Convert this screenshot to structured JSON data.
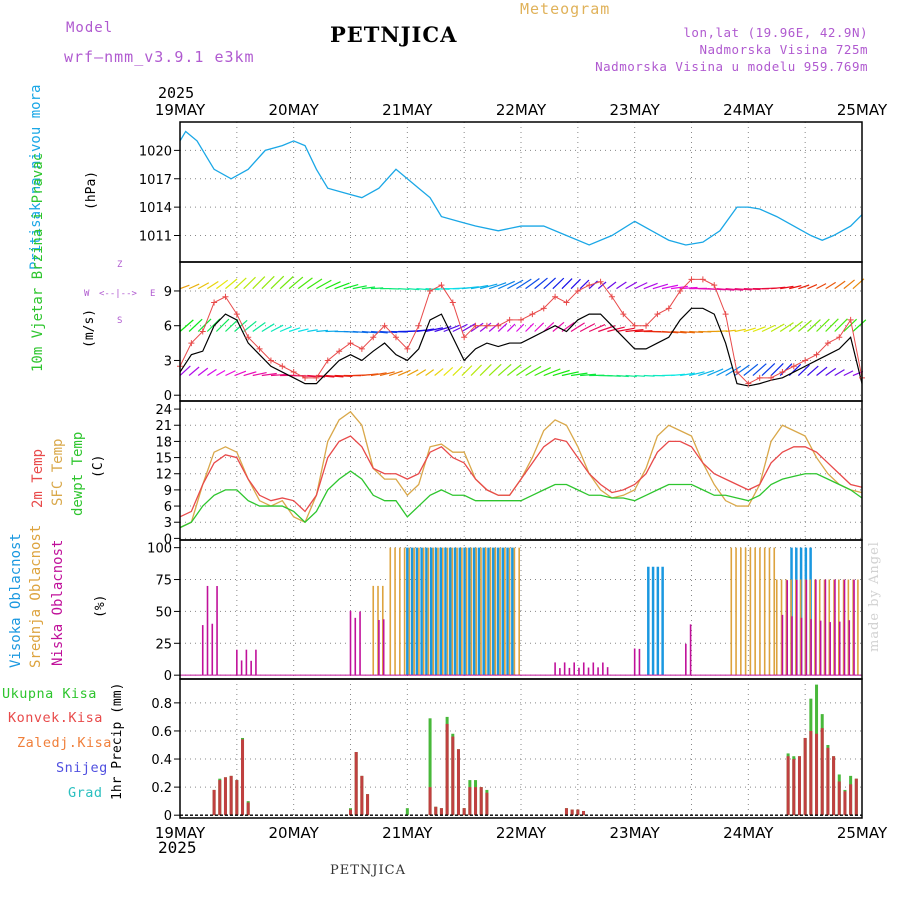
{
  "header": {
    "model_label": "Model",
    "model_name": "wrf—nmm_v3.9.1  e3km",
    "title": "PETNJICA",
    "meteogram_label": "Meteogram",
    "lonlat": "lon,lat (19.96E, 42.9N)",
    "altitude": "Nadmorska Visina 725m",
    "altitude_model": "Nadmorska Visina u modelu 959.769m",
    "year_top": "2025",
    "year_bottom": "2025"
  },
  "footer": {
    "station": "PETNJICA",
    "watermark": "made by Angel"
  },
  "colors": {
    "pressure": "#1aa7e6",
    "temp2m": "#e84a4a",
    "sfc": "#d9a84a",
    "dewpt": "#2ec52e",
    "high_cloud": "#1a98e0",
    "mid_cloud": "#dda33e",
    "low_cloud": "#c0109a",
    "precip_total": "#48b83a",
    "precip_conv": "#c04040",
    "text_purple": "#b05ad0"
  },
  "chart_data": [
    {
      "id": "pressure",
      "type": "line",
      "ylabel_title": "Pritisak na nivou mora",
      "ylabel_unit": "(hPa)",
      "yticks": [
        1011,
        1014,
        1017,
        1020
      ],
      "ylim": [
        1008.2,
        1023
      ],
      "x_days": [
        0,
        0.05,
        0.15,
        0.3,
        0.45,
        0.6,
        0.75,
        0.9,
        1.0,
        1.1,
        1.2,
        1.3,
        1.45,
        1.6,
        1.75,
        1.9,
        2.0,
        2.1,
        2.2,
        2.3,
        2.45,
        2.6,
        2.8,
        3.0,
        3.2,
        3.4,
        3.6,
        3.8,
        4.0,
        4.15,
        4.3,
        4.45,
        4.6,
        4.75,
        4.9,
        5.0,
        5.1,
        5.25,
        5.4,
        5.55,
        5.65,
        5.75,
        5.9,
        6.0
      ],
      "values": [
        1021,
        1022,
        1021,
        1018,
        1017,
        1018,
        1020,
        1020.5,
        1021,
        1020.5,
        1018,
        1016,
        1015.5,
        1015,
        1016,
        1018,
        1017,
        1016,
        1015,
        1013,
        1012.5,
        1012,
        1011.5,
        1012,
        1012,
        1011,
        1010,
        1011,
        1012.5,
        1011.5,
        1010.5,
        1010,
        1010.3,
        1011.5,
        1014,
        1014,
        1013.8,
        1013,
        1012,
        1011,
        1010.5,
        1011,
        1012,
        1013.2
      ]
    },
    {
      "id": "wind",
      "type": "line",
      "ylabel_title": "10m Vjetar Brzina i Pravac",
      "ylabel_unit": "(m/s)",
      "compass": [
        "Z",
        "W",
        "E",
        "S",
        "<--|-->"
      ],
      "yticks": [
        0,
        3,
        6,
        9
      ],
      "ylim": [
        -0.5,
        11.5
      ],
      "x_days": [
        0,
        0.1,
        0.2,
        0.3,
        0.4,
        0.5,
        0.6,
        0.7,
        0.8,
        0.9,
        1.0,
        1.1,
        1.2,
        1.3,
        1.4,
        1.5,
        1.6,
        1.7,
        1.8,
        1.9,
        2.0,
        2.1,
        2.2,
        2.3,
        2.4,
        2.5,
        2.6,
        2.7,
        2.8,
        2.9,
        3.0,
        3.1,
        3.2,
        3.3,
        3.4,
        3.5,
        3.6,
        3.7,
        3.8,
        3.9,
        4.0,
        4.1,
        4.2,
        4.3,
        4.4,
        4.5,
        4.6,
        4.7,
        4.8,
        4.9,
        5.0,
        5.1,
        5.2,
        5.3,
        5.4,
        5.5,
        5.6,
        5.7,
        5.8,
        5.9,
        6.0
      ],
      "speed": [
        2,
        3.5,
        3.8,
        6,
        7,
        6.5,
        4.5,
        3.5,
        2.5,
        2,
        1.5,
        1,
        1,
        2,
        3,
        3.5,
        3,
        3.8,
        4.5,
        3.5,
        3,
        4,
        6.5,
        7,
        5,
        3,
        4,
        4.5,
        4.2,
        4.5,
        4.5,
        5,
        5.5,
        6,
        5.5,
        6.5,
        7,
        7,
        6,
        5,
        4,
        4,
        4.5,
        5,
        6.5,
        7.5,
        7.5,
        7,
        4.5,
        1,
        0.8,
        1,
        1.3,
        1.5,
        2,
        2.5,
        3,
        3.5,
        4,
        5,
        1
      ],
      "gust": [
        2.5,
        4.5,
        5.5,
        8,
        8.5,
        7,
        5,
        4,
        3,
        2.5,
        2,
        1.5,
        1.5,
        3,
        3.8,
        4.5,
        4,
        5,
        6,
        5,
        4,
        6,
        9,
        9.5,
        8,
        5,
        6,
        6,
        6,
        6.5,
        6.5,
        7,
        7.5,
        8.5,
        8,
        9,
        9.5,
        9.8,
        8.5,
        7,
        6,
        6,
        7,
        7.5,
        9,
        10,
        10,
        9.5,
        7,
        2,
        1,
        1.5,
        1.5,
        2,
        2.5,
        3,
        3.5,
        4.5,
        5,
        6.5,
        1.5
      ]
    },
    {
      "id": "temperature",
      "type": "line",
      "ylabel_title": [
        "2m Temp",
        "SFC Temp",
        "dewpt Temp"
      ],
      "ylabel_unit": "(C)",
      "yticks": [
        0,
        3,
        6,
        9,
        12,
        15,
        18,
        21,
        24
      ],
      "ylim": [
        -0.3,
        25.5
      ],
      "x_days": [
        0,
        0.1,
        0.2,
        0.3,
        0.4,
        0.5,
        0.6,
        0.7,
        0.8,
        0.9,
        1.0,
        1.1,
        1.2,
        1.3,
        1.4,
        1.5,
        1.6,
        1.7,
        1.8,
        1.9,
        2.0,
        2.1,
        2.2,
        2.3,
        2.4,
        2.5,
        2.6,
        2.7,
        2.8,
        2.9,
        3.0,
        3.1,
        3.2,
        3.3,
        3.4,
        3.5,
        3.6,
        3.7,
        3.8,
        3.9,
        4.0,
        4.1,
        4.2,
        4.3,
        4.4,
        4.5,
        4.6,
        4.7,
        4.8,
        4.9,
        5.0,
        5.1,
        5.2,
        5.3,
        5.4,
        5.5,
        5.6,
        5.7,
        5.8,
        5.9,
        6.0
      ],
      "temp2m": [
        4,
        5,
        10,
        14,
        15.5,
        15,
        11,
        8,
        7,
        7.5,
        7,
        5,
        8,
        15,
        18,
        19,
        17,
        13,
        12,
        12,
        11,
        12,
        16,
        17,
        15,
        14,
        11,
        9,
        8,
        8,
        11,
        14,
        17,
        18.5,
        18,
        15,
        12,
        10,
        8.5,
        9,
        10,
        12,
        16,
        18,
        18,
        17,
        14,
        12,
        11,
        10,
        9,
        10,
        14,
        16,
        17,
        17,
        16,
        14,
        12,
        10,
        9.5
      ],
      "sfc": [
        2,
        3,
        10,
        16,
        17,
        16,
        11,
        7,
        6,
        7,
        4,
        3,
        8,
        18,
        22,
        23.5,
        21,
        13,
        11,
        11,
        8,
        10,
        17,
        17.5,
        16,
        16,
        11,
        9,
        8,
        8,
        11,
        15,
        20,
        22,
        21,
        17,
        12,
        9,
        7.5,
        8,
        9,
        13,
        19,
        21,
        20,
        19,
        14,
        10,
        7,
        6,
        6,
        10,
        18,
        21,
        20,
        19,
        15,
        12,
        10,
        9,
        8.5
      ],
      "dewpt": [
        2,
        3,
        6,
        8,
        9,
        9,
        7,
        6,
        6,
        6,
        5,
        3,
        5,
        9,
        11,
        12.5,
        11,
        8,
        7,
        7,
        4,
        6,
        8,
        9,
        8,
        8,
        7,
        7,
        7,
        7,
        7,
        8,
        9,
        10,
        10,
        9,
        8,
        8,
        7.5,
        7.5,
        7,
        8,
        9,
        10,
        10,
        10,
        9,
        8,
        8,
        7.5,
        7,
        8,
        10,
        11,
        11.5,
        12,
        12,
        11,
        10,
        9,
        7.5
      ]
    },
    {
      "id": "clouds",
      "type": "bar",
      "ylabel_title": [
        "Visoka Oblacnost",
        "Srednja Oblacnost",
        "Niska Oblacnost"
      ],
      "ylabel_unit": "(%)",
      "yticks": [
        0,
        25,
        50,
        75,
        100
      ],
      "ylim": [
        -3,
        106
      ],
      "series": [
        {
          "name": "Visoka Oblacnost",
          "spans": [
            [
              2.0,
              2.95,
              100
            ],
            [
              4.12,
              4.28,
              85
            ],
            [
              5.38,
              5.55,
              100
            ]
          ]
        },
        {
          "name": "Srednja Oblacnost",
          "spans": [
            [
              1.7,
              1.8,
              70
            ],
            [
              1.85,
              3.0,
              100
            ],
            [
              4.85,
              5.25,
              100
            ],
            [
              5.25,
              6.0,
              75
            ]
          ]
        },
        {
          "name": "Niska Oblacnost",
          "spans": [
            [
              0.2,
              0.35,
              70
            ],
            [
              0.5,
              0.7,
              20
            ],
            [
              1.5,
              1.6,
              55
            ],
            [
              1.75,
              1.8,
              50
            ],
            [
              3.3,
              3.8,
              10
            ],
            [
              4.0,
              4.05,
              24
            ],
            [
              4.45,
              4.5,
              40
            ],
            [
              5.3,
              5.95,
              75
            ]
          ]
        }
      ]
    },
    {
      "id": "precip",
      "type": "bar",
      "ylabel_title": [
        "Ukupna Kisa",
        "Konvek.Kisa",
        "Zaledj.Kisa",
        "Snijeg",
        "Grad"
      ],
      "ylabel_unit": "1hr Precip (mm)",
      "yticks": [
        0,
        0.2,
        0.4,
        0.6,
        0.8
      ],
      "ylim": [
        -0.02,
        0.97
      ],
      "x_days": [
        0.3,
        0.35,
        0.4,
        0.45,
        0.5,
        0.55,
        0.6,
        1.5,
        1.55,
        1.6,
        1.65,
        2.0,
        2.2,
        2.25,
        2.3,
        2.35,
        2.4,
        2.45,
        2.5,
        2.55,
        2.6,
        2.65,
        2.7,
        3.4,
        3.45,
        3.5,
        3.55,
        5.35,
        5.4,
        5.45,
        5.5,
        5.55,
        5.6,
        5.65,
        5.7,
        5.75,
        5.8,
        5.85,
        5.9,
        5.95
      ],
      "total": [
        0.18,
        0.26,
        0.27,
        0.28,
        0.25,
        0.55,
        0.1,
        0.05,
        0.45,
        0.28,
        0.15,
        0.05,
        0.69,
        0.06,
        0.05,
        0.7,
        0.58,
        0.47,
        0.05,
        0.25,
        0.25,
        0.2,
        0.18,
        0.05,
        0.04,
        0.04,
        0.03,
        0.44,
        0.42,
        0.42,
        0.55,
        0.83,
        0.93,
        0.72,
        0.5,
        0.42,
        0.29,
        0.18,
        0.28,
        0.26
      ],
      "conv": [
        0.18,
        0.25,
        0.27,
        0.28,
        0.25,
        0.54,
        0.09,
        0.04,
        0.45,
        0.28,
        0.15,
        0.0,
        0.2,
        0.06,
        0.05,
        0.65,
        0.56,
        0.47,
        0.05,
        0.2,
        0.2,
        0.2,
        0.16,
        0.05,
        0.04,
        0.04,
        0.03,
        0.42,
        0.4,
        0.42,
        0.55,
        0.6,
        0.58,
        0.62,
        0.48,
        0.42,
        0.24,
        0.17,
        0.22,
        0.26
      ]
    }
  ],
  "xaxis": {
    "labels": [
      "19MAY",
      "20MAY",
      "21MAY",
      "22MAY",
      "23MAY",
      "24MAY",
      "25MAY"
    ]
  }
}
